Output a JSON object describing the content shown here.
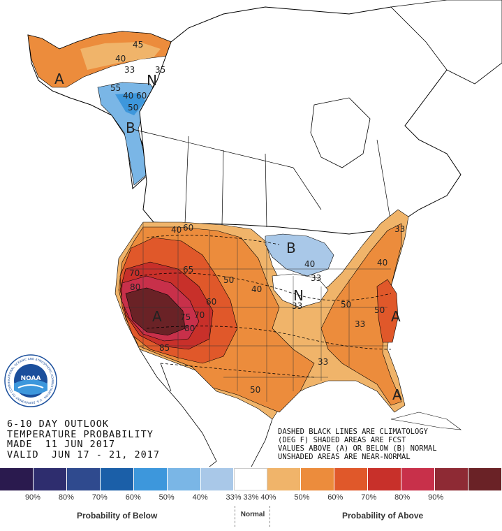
{
  "outlook": {
    "title_line1": "6-10 DAY OUTLOOK",
    "title_line2": "TEMPERATURE PROBABILITY",
    "made": "MADE  11 JUN 2017",
    "valid": "VALID  JUN 17 - 21, 2017"
  },
  "notes": {
    "line1": "DASHED BLACK LINES ARE CLIMATOLOGY",
    "line2": "(DEG F) SHADED AREAS ARE FCST",
    "line3": "VALUES ABOVE (A) OR BELOW (B) NORMAL",
    "line4": "UNSHADED AREAS ARE NEAR-NORMAL"
  },
  "logo": {
    "text": "NOAA",
    "ring_text": "NATIONAL OCEANIC AND ATMOSPHERIC ADMINISTRATION · U.S. DEPARTMENT OF COMMERCE"
  },
  "legend": {
    "swatches": [
      {
        "color": "#2a1a4e",
        "label": "90%"
      },
      {
        "color": "#2e2d6e",
        "label": "80%"
      },
      {
        "color": "#2f4a8e",
        "label": "70%"
      },
      {
        "color": "#1b5fa8",
        "label": "60%"
      },
      {
        "color": "#3d97dc",
        "label": "50%"
      },
      {
        "color": "#7ab6e6",
        "label": "40%"
      },
      {
        "color": "#a9c8e8",
        "label": "33%"
      },
      {
        "color": "#ffffff",
        "label": "33%"
      },
      {
        "color": "#f0b46a",
        "label": "40%"
      },
      {
        "color": "#ec8c3c",
        "label": "50%"
      },
      {
        "color": "#e0582a",
        "label": "60%"
      },
      {
        "color": "#c8302a",
        "label": "70%"
      },
      {
        "color": "#c8304a",
        "label": "80%"
      },
      {
        "color": "#8e2a34",
        "label": "90%"
      },
      {
        "color": "#6a2226",
        "label": ""
      }
    ],
    "below_label": "Probability of Below",
    "normal_label": "Normal",
    "above_label": "Probability of Above"
  },
  "map_labels": {
    "alaska_above": "A",
    "alaska_normal": "N",
    "alaska_below": "B",
    "glakes_below": "B",
    "midwest_normal": "N",
    "southwest_above": "A",
    "east_above": "A",
    "florida_above": "A",
    "contours": [
      "40",
      "45",
      "33",
      "55",
      "40",
      "60",
      "50",
      "35",
      "40",
      "60",
      "65",
      "70",
      "80",
      "75",
      "70",
      "80",
      "85",
      "50",
      "40",
      "60",
      "50",
      "50",
      "33",
      "40",
      "33",
      "33",
      "40",
      "50",
      "33",
      "33"
    ]
  }
}
